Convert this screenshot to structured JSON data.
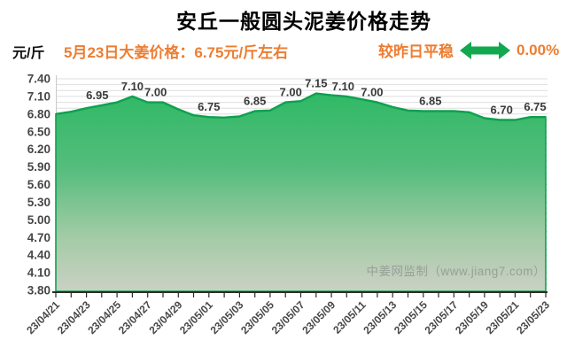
{
  "header": {
    "title": "安丘一般圆头泥姜价格走势",
    "unit": "元/斤",
    "subtitle": "5月23日大姜价格：6.75元/斤左右",
    "trend_label": "较昨日平稳",
    "trend_value": "0.00%",
    "trend_icon": "flat-double-arrow-icon"
  },
  "watermark": "中姜网监制（www.jiang7.com）",
  "colors": {
    "accent_orange": "#ED7D31",
    "arrow_green": "#12A850",
    "line_green": "#0FA050",
    "area_gradient": [
      "#2FB965",
      "#55BD7D",
      "#A2CBA5",
      "#CBD0C4"
    ],
    "grid": "#DEDEDE",
    "plot_border": "#C9C9C9",
    "axis": "#2B2B2B",
    "tick_label": "#474747",
    "data_label": "#3A3A3A",
    "watermark_gray": "#97A098",
    "title_black": "#000000"
  },
  "chart_data": {
    "type": "area",
    "title": "安丘一般圆头泥姜价格走势",
    "ylabel": "元/斤",
    "ylim": [
      3.8,
      7.4
    ],
    "ytick_step": 0.3,
    "minor_gridline_step": 0.1,
    "grid": true,
    "legend": false,
    "x_label_every": 2,
    "x": [
      "23/04/21",
      "23/04/22",
      "23/04/23",
      "23/04/24",
      "23/04/25",
      "23/04/26",
      "23/04/27",
      "23/04/28",
      "23/04/29",
      "23/04/30",
      "23/05/01",
      "23/05/02",
      "23/05/03",
      "23/05/04",
      "23/05/05",
      "23/05/06",
      "23/05/07",
      "23/05/08",
      "23/05/09",
      "23/05/10",
      "23/05/11",
      "23/05/12",
      "23/05/13",
      "23/05/14",
      "23/05/15",
      "23/05/16",
      "23/05/17",
      "23/05/18",
      "23/05/19",
      "23/05/20",
      "23/05/21",
      "23/05/22",
      "23/05/23"
    ],
    "values": [
      6.8,
      6.84,
      6.9,
      6.95,
      7.0,
      7.1,
      7.0,
      7.0,
      6.88,
      6.78,
      6.75,
      6.74,
      6.76,
      6.85,
      6.86,
      7.0,
      7.02,
      7.15,
      7.12,
      7.1,
      7.05,
      7.0,
      6.92,
      6.86,
      6.85,
      6.85,
      6.85,
      6.83,
      6.73,
      6.7,
      6.7,
      6.75,
      6.75
    ],
    "point_labels": [
      {
        "i": 3,
        "t": "6.95",
        "dx": -5
      },
      {
        "i": 5,
        "t": "7.10",
        "dx": 0
      },
      {
        "i": 6,
        "t": "7.00",
        "dx": 9
      },
      {
        "i": 10,
        "t": "6.75",
        "dx": 0
      },
      {
        "i": 13,
        "t": "6.85",
        "dx": 0
      },
      {
        "i": 15,
        "t": "7.00",
        "dx": 6
      },
      {
        "i": 17,
        "t": "7.15",
        "dx": 0
      },
      {
        "i": 19,
        "t": "7.10",
        "dx": -4
      },
      {
        "i": 21,
        "t": "7.00",
        "dx": -6
      },
      {
        "i": 24,
        "t": "6.85",
        "dx": 8
      },
      {
        "i": 29,
        "t": "6.70",
        "dx": 2
      },
      {
        "i": 32,
        "t": "6.75",
        "dx": -12
      }
    ]
  }
}
